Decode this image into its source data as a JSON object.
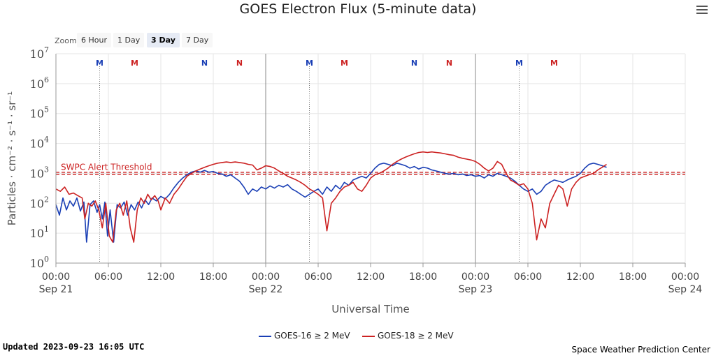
{
  "header": {
    "title": "GOES Electron Flux (5-minute data)",
    "menu_icon": "hamburger-menu-icon"
  },
  "zoom": {
    "label": "Zoom",
    "options": [
      "6 Hour",
      "1 Day",
      "3 Day",
      "7 Day"
    ],
    "selected": "3 Day"
  },
  "footer": {
    "updated": "Updated 2023-09-23 16:05 UTC",
    "credit": "Space Weather Prediction Center"
  },
  "chart_data": {
    "type": "line",
    "title": "GOES Electron Flux (5-minute data)",
    "xlabel": "Universal Time",
    "ylabel": "Particles · cm⁻² · s⁻¹ · sr⁻¹",
    "y_scale": "log",
    "ylim": [
      1,
      10000000
    ],
    "xlim": [
      "2023-09-21 00:00",
      "2023-09-24 00:00"
    ],
    "y_ticks": [
      {
        "base": "10",
        "exp": "0"
      },
      {
        "base": "10",
        "exp": "1"
      },
      {
        "base": "10",
        "exp": "2"
      },
      {
        "base": "10",
        "exp": "3"
      },
      {
        "base": "10",
        "exp": "4"
      },
      {
        "base": "10",
        "exp": "5"
      },
      {
        "base": "10",
        "exp": "6"
      },
      {
        "base": "10",
        "exp": "7"
      }
    ],
    "x_ticks": [
      {
        "time": "00:00",
        "date": "Sep 21"
      },
      {
        "time": "06:00",
        "date": ""
      },
      {
        "time": "12:00",
        "date": ""
      },
      {
        "time": "18:00",
        "date": ""
      },
      {
        "time": "00:00",
        "date": "Sep 22"
      },
      {
        "time": "06:00",
        "date": ""
      },
      {
        "time": "12:00",
        "date": ""
      },
      {
        "time": "18:00",
        "date": ""
      },
      {
        "time": "00:00",
        "date": "Sep 23"
      },
      {
        "time": "06:00",
        "date": ""
      },
      {
        "time": "12:00",
        "date": ""
      },
      {
        "time": "18:00",
        "date": ""
      },
      {
        "time": "00:00",
        "date": "Sep 24"
      }
    ],
    "x_tick_hours": [
      0,
      6,
      12,
      18,
      24,
      30,
      36,
      42,
      48,
      54,
      60,
      66,
      72
    ],
    "day_boundary_hours": [
      24,
      48
    ],
    "threshold": {
      "label": "SWPC Alert Threshold",
      "value": 1000,
      "color": "#cc2222"
    },
    "noon_midnight_markers": [
      {
        "label": "M",
        "hour": 5.0,
        "color": "#1a3fb5"
      },
      {
        "label": "M",
        "hour": 9.0,
        "color": "#cc2222"
      },
      {
        "label": "N",
        "hour": 17.0,
        "color": "#1a3fb5"
      },
      {
        "label": "N",
        "hour": 21.0,
        "color": "#cc2222"
      },
      {
        "label": "M",
        "hour": 29.0,
        "color": "#1a3fb5"
      },
      {
        "label": "M",
        "hour": 33.0,
        "color": "#cc2222"
      },
      {
        "label": "N",
        "hour": 41.0,
        "color": "#1a3fb5"
      },
      {
        "label": "N",
        "hour": 45.0,
        "color": "#cc2222"
      },
      {
        "label": "M",
        "hour": 53.0,
        "color": "#1a3fb5"
      },
      {
        "label": "M",
        "hour": 57.0,
        "color": "#cc2222"
      }
    ],
    "marker_line_hours": [
      5.0,
      29.0,
      53.0
    ],
    "series": [
      {
        "name": "GOES-16 ≥ 2 MeV",
        "color": "#1a3fb5",
        "points": [
          [
            0.0,
            90
          ],
          [
            0.4,
            40
          ],
          [
            0.8,
            150
          ],
          [
            1.2,
            60
          ],
          [
            1.6,
            120
          ],
          [
            2.0,
            80
          ],
          [
            2.4,
            150
          ],
          [
            2.8,
            55
          ],
          [
            3.2,
            110
          ],
          [
            3.5,
            5
          ],
          [
            3.9,
            90
          ],
          [
            4.3,
            120
          ],
          [
            4.7,
            50
          ],
          [
            5.0,
            90
          ],
          [
            5.3,
            30
          ],
          [
            5.6,
            110
          ],
          [
            5.9,
            8
          ],
          [
            6.2,
            60
          ],
          [
            6.6,
            5
          ],
          [
            7.0,
            90
          ],
          [
            7.4,
            70
          ],
          [
            7.8,
            110
          ],
          [
            8.2,
            40
          ],
          [
            8.6,
            90
          ],
          [
            9.0,
            60
          ],
          [
            9.4,
            110
          ],
          [
            9.8,
            70
          ],
          [
            10.2,
            130
          ],
          [
            10.6,
            90
          ],
          [
            11.0,
            150
          ],
          [
            11.5,
            120
          ],
          [
            12.0,
            170
          ],
          [
            12.5,
            140
          ],
          [
            13.0,
            200
          ],
          [
            13.5,
            330
          ],
          [
            14.0,
            500
          ],
          [
            14.5,
            700
          ],
          [
            15.0,
            900
          ],
          [
            15.5,
            1100
          ],
          [
            16.0,
            1200
          ],
          [
            16.5,
            1100
          ],
          [
            17.0,
            1250
          ],
          [
            17.5,
            1100
          ],
          [
            18.0,
            1150
          ],
          [
            18.5,
            1000
          ],
          [
            19.0,
            950
          ],
          [
            19.5,
            800
          ],
          [
            20.0,
            900
          ],
          [
            20.5,
            700
          ],
          [
            21.0,
            550
          ],
          [
            21.5,
            350
          ],
          [
            22.0,
            200
          ],
          [
            22.5,
            300
          ],
          [
            23.0,
            250
          ],
          [
            23.5,
            350
          ],
          [
            24.0,
            300
          ],
          [
            24.5,
            380
          ],
          [
            25.0,
            320
          ],
          [
            25.5,
            400
          ],
          [
            26.0,
            350
          ],
          [
            26.5,
            420
          ],
          [
            27.0,
            300
          ],
          [
            27.5,
            250
          ],
          [
            28.0,
            200
          ],
          [
            28.5,
            160
          ],
          [
            29.0,
            200
          ],
          [
            29.5,
            250
          ],
          [
            30.0,
            300
          ],
          [
            30.5,
            200
          ],
          [
            31.0,
            350
          ],
          [
            31.5,
            250
          ],
          [
            32.0,
            400
          ],
          [
            32.5,
            300
          ],
          [
            33.0,
            500
          ],
          [
            33.5,
            400
          ],
          [
            34.0,
            600
          ],
          [
            34.5,
            700
          ],
          [
            35.0,
            800
          ],
          [
            35.5,
            700
          ],
          [
            36.0,
            1000
          ],
          [
            36.5,
            1500
          ],
          [
            37.0,
            2000
          ],
          [
            37.5,
            2200
          ],
          [
            38.0,
            2000
          ],
          [
            38.5,
            1800
          ],
          [
            39.0,
            2200
          ],
          [
            39.5,
            2000
          ],
          [
            40.0,
            1800
          ],
          [
            40.5,
            1500
          ],
          [
            41.0,
            1700
          ],
          [
            41.5,
            1400
          ],
          [
            42.0,
            1600
          ],
          [
            42.5,
            1500
          ],
          [
            43.0,
            1300
          ],
          [
            43.5,
            1200
          ],
          [
            44.0,
            1100
          ],
          [
            44.5,
            1000
          ],
          [
            45.0,
            950
          ],
          [
            45.5,
            1000
          ],
          [
            46.0,
            900
          ],
          [
            46.5,
            950
          ],
          [
            47.0,
            850
          ],
          [
            47.5,
            900
          ],
          [
            48.0,
            800
          ],
          [
            48.5,
            850
          ],
          [
            49.0,
            700
          ],
          [
            49.5,
            900
          ],
          [
            50.0,
            800
          ],
          [
            50.5,
            1000
          ],
          [
            51.0,
            900
          ],
          [
            51.5,
            800
          ],
          [
            52.0,
            700
          ],
          [
            52.5,
            550
          ],
          [
            53.0,
            400
          ],
          [
            53.5,
            300
          ],
          [
            54.0,
            250
          ],
          [
            54.5,
            300
          ],
          [
            55.0,
            200
          ],
          [
            55.5,
            250
          ],
          [
            56.0,
            400
          ],
          [
            56.5,
            500
          ],
          [
            57.0,
            600
          ],
          [
            57.5,
            550
          ],
          [
            58.0,
            500
          ],
          [
            58.5,
            600
          ],
          [
            59.0,
            700
          ],
          [
            59.5,
            800
          ],
          [
            60.0,
            1000
          ],
          [
            60.5,
            1500
          ],
          [
            61.0,
            2000
          ],
          [
            61.5,
            2200
          ],
          [
            62.0,
            2000
          ],
          [
            62.5,
            1800
          ],
          [
            63.0,
            1600
          ]
        ]
      },
      {
        "name": "GOES-18 ≥ 2 MeV",
        "color": "#cc2222",
        "points": [
          [
            0.0,
            300
          ],
          [
            0.5,
            250
          ],
          [
            1.0,
            350
          ],
          [
            1.5,
            200
          ],
          [
            2.0,
            220
          ],
          [
            2.5,
            180
          ],
          [
            3.0,
            150
          ],
          [
            3.3,
            30
          ],
          [
            3.7,
            100
          ],
          [
            4.1,
            80
          ],
          [
            4.5,
            120
          ],
          [
            4.9,
            60
          ],
          [
            5.3,
            15
          ],
          [
            5.7,
            100
          ],
          [
            6.1,
            8
          ],
          [
            6.5,
            5
          ],
          [
            6.9,
            60
          ],
          [
            7.3,
            100
          ],
          [
            7.7,
            40
          ],
          [
            8.1,
            120
          ],
          [
            8.5,
            15
          ],
          [
            8.9,
            5
          ],
          [
            9.3,
            60
          ],
          [
            9.7,
            150
          ],
          [
            10.1,
            100
          ],
          [
            10.5,
            200
          ],
          [
            10.9,
            130
          ],
          [
            11.3,
            180
          ],
          [
            11.7,
            120
          ],
          [
            12.0,
            60
          ],
          [
            12.5,
            150
          ],
          [
            13.0,
            100
          ],
          [
            13.5,
            200
          ],
          [
            14.0,
            300
          ],
          [
            14.5,
            500
          ],
          [
            15.0,
            800
          ],
          [
            15.5,
            1000
          ],
          [
            16.0,
            1200
          ],
          [
            16.5,
            1400
          ],
          [
            17.0,
            1600
          ],
          [
            17.5,
            1800
          ],
          [
            18.0,
            2000
          ],
          [
            18.5,
            2200
          ],
          [
            19.0,
            2300
          ],
          [
            19.5,
            2400
          ],
          [
            20.0,
            2300
          ],
          [
            20.5,
            2400
          ],
          [
            21.0,
            2300
          ],
          [
            21.5,
            2200
          ],
          [
            22.0,
            2000
          ],
          [
            22.5,
            1900
          ],
          [
            23.0,
            1300
          ],
          [
            23.5,
            1500
          ],
          [
            24.0,
            1800
          ],
          [
            24.5,
            1700
          ],
          [
            25.0,
            1500
          ],
          [
            25.5,
            1200
          ],
          [
            26.0,
            1000
          ],
          [
            26.5,
            800
          ],
          [
            27.0,
            700
          ],
          [
            27.5,
            600
          ],
          [
            28.0,
            500
          ],
          [
            28.5,
            400
          ],
          [
            29.0,
            300
          ],
          [
            29.5,
            250
          ],
          [
            30.0,
            200
          ],
          [
            30.5,
            150
          ],
          [
            31.0,
            12
          ],
          [
            31.5,
            100
          ],
          [
            32.0,
            150
          ],
          [
            32.5,
            250
          ],
          [
            33.0,
            350
          ],
          [
            33.5,
            400
          ],
          [
            34.0,
            500
          ],
          [
            34.5,
            300
          ],
          [
            35.0,
            250
          ],
          [
            35.5,
            400
          ],
          [
            36.0,
            700
          ],
          [
            36.5,
            900
          ],
          [
            37.0,
            1000
          ],
          [
            37.5,
            1200
          ],
          [
            38.0,
            1500
          ],
          [
            38.5,
            2000
          ],
          [
            39.0,
            2500
          ],
          [
            39.5,
            3000
          ],
          [
            40.0,
            3500
          ],
          [
            40.5,
            4000
          ],
          [
            41.0,
            4500
          ],
          [
            41.5,
            5000
          ],
          [
            42.0,
            5200
          ],
          [
            42.5,
            5000
          ],
          [
            43.0,
            5200
          ],
          [
            43.5,
            5000
          ],
          [
            44.0,
            4800
          ],
          [
            44.5,
            4500
          ],
          [
            45.0,
            4200
          ],
          [
            45.5,
            4000
          ],
          [
            46.0,
            3500
          ],
          [
            46.5,
            3200
          ],
          [
            47.0,
            3000
          ],
          [
            47.5,
            2800
          ],
          [
            48.0,
            2500
          ],
          [
            48.5,
            2000
          ],
          [
            49.0,
            1500
          ],
          [
            49.5,
            1200
          ],
          [
            50.0,
            1500
          ],
          [
            50.5,
            2500
          ],
          [
            51.0,
            2000
          ],
          [
            51.5,
            1000
          ],
          [
            52.0,
            600
          ],
          [
            52.5,
            500
          ],
          [
            53.0,
            400
          ],
          [
            53.5,
            450
          ],
          [
            54.0,
            300
          ],
          [
            54.5,
            100
          ],
          [
            55.0,
            6
          ],
          [
            55.5,
            30
          ],
          [
            56.0,
            15
          ],
          [
            56.5,
            100
          ],
          [
            57.0,
            200
          ],
          [
            57.5,
            400
          ],
          [
            58.0,
            300
          ],
          [
            58.5,
            80
          ],
          [
            59.0,
            300
          ],
          [
            59.5,
            500
          ],
          [
            60.0,
            700
          ],
          [
            60.5,
            800
          ],
          [
            61.0,
            900
          ],
          [
            61.5,
            1000
          ],
          [
            62.0,
            1300
          ],
          [
            62.5,
            1600
          ],
          [
            63.0,
            2000
          ]
        ]
      }
    ],
    "legend": {
      "placement": "bottom-center"
    },
    "grid": true
  }
}
